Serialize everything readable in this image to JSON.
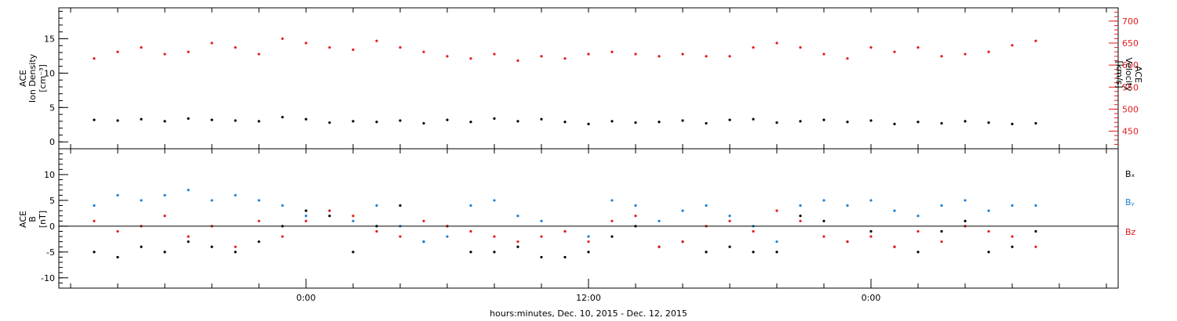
{
  "chart_data": [
    {
      "type": "scatter",
      "panel": "top",
      "ylabel_left": [
        "ACE",
        "Ion Density",
        "[cm⁻³]"
      ],
      "ylabel_right": [
        "ACE",
        "Velocity",
        "[km/s]"
      ],
      "ylim_left": [
        -1,
        19.5
      ],
      "yticks_left": [
        0,
        5,
        10,
        15
      ],
      "ylim_right": [
        410,
        730
      ],
      "yticks_right": [
        450,
        500,
        550,
        600,
        650,
        700
      ],
      "series": [
        {
          "axis": "left",
          "color": "#000000",
          "x": [
            -9,
            -8,
            -7,
            -6,
            -5,
            -4,
            -3,
            -2,
            -1,
            0,
            1,
            2,
            3,
            4,
            5,
            6,
            7,
            8,
            9,
            10,
            11,
            12,
            13,
            14,
            15,
            16,
            17,
            18,
            19,
            20,
            21,
            22,
            23,
            24,
            25,
            26,
            27,
            28,
            29,
            30,
            31
          ],
          "y": [
            3.2,
            3.1,
            3.3,
            3.0,
            3.4,
            3.2,
            3.1,
            3.0,
            3.6,
            3.3,
            2.8,
            3.0,
            2.9,
            3.1,
            2.7,
            3.2,
            2.9,
            3.4,
            3.0,
            3.3,
            2.9,
            2.6,
            3.0,
            2.8,
            2.9,
            3.1,
            2.7,
            3.2,
            3.3,
            2.8,
            3.0,
            3.2,
            2.9,
            3.1,
            2.6,
            2.9,
            2.7,
            3.0,
            2.8,
            2.6,
            2.7
          ]
        },
        {
          "axis": "right",
          "color": "#e41a1c",
          "x": [
            -9,
            -8,
            -7,
            -6,
            -5,
            -4,
            -3,
            -2,
            -1,
            0,
            1,
            2,
            3,
            4,
            5,
            6,
            7,
            8,
            9,
            10,
            11,
            12,
            13,
            14,
            15,
            16,
            17,
            18,
            19,
            20,
            21,
            22,
            23,
            24,
            25,
            26,
            27,
            28,
            29,
            30,
            31
          ],
          "y": [
            615,
            630,
            640,
            625,
            630,
            650,
            640,
            625,
            660,
            650,
            640,
            635,
            655,
            640,
            630,
            620,
            615,
            625,
            610,
            620,
            615,
            625,
            630,
            625,
            620,
            625,
            620,
            620,
            640,
            650,
            640,
            625,
            615,
            640,
            630,
            640,
            620,
            625,
            630,
            645,
            655
          ]
        }
      ]
    },
    {
      "type": "scatter",
      "panel": "bottom",
      "ylabel_left": [
        "ACE",
        "B",
        "[nT]"
      ],
      "ylim": [
        -12,
        15
      ],
      "yticks": [
        -10,
        -5,
        0,
        5,
        10
      ],
      "xlabel": "hours:minutes, Dec. 10, 2015 - Dec. 12, 2015",
      "x_ticks": [
        {
          "hour": 0,
          "label": "0:00"
        },
        {
          "hour": 12,
          "label": "12:00"
        },
        {
          "hour": 24,
          "label": "0:00"
        }
      ],
      "x_range_hours": [
        -10.5,
        34.5
      ],
      "series": [
        {
          "name": "Bx",
          "legend": "Bₓ",
          "color": "#000000",
          "x": [
            -9,
            -8,
            -7,
            -6,
            -5,
            -4,
            -3,
            -2,
            -1,
            0,
            1,
            2,
            3,
            4,
            5,
            6,
            7,
            8,
            9,
            10,
            11,
            12,
            13,
            14,
            15,
            16,
            17,
            18,
            19,
            20,
            21,
            22,
            23,
            24,
            25,
            26,
            27,
            28,
            29,
            30,
            31
          ],
          "y": [
            -5,
            -6,
            -4,
            -5,
            -3,
            -4,
            -5,
            -3,
            0,
            3,
            2,
            -5,
            0,
            4,
            -3,
            0,
            -5,
            -5,
            -4,
            -6,
            -6,
            -5,
            -2,
            0,
            -4,
            -3,
            -5,
            -4,
            -5,
            -5,
            2,
            1,
            -3,
            -1,
            -4,
            -5,
            -1,
            1,
            -5,
            -4,
            -1
          ]
        },
        {
          "name": "By",
          "legend": "Bᵧ",
          "color": "#1b7fd4",
          "x": [
            -9,
            -8,
            -7,
            -6,
            -5,
            -4,
            -3,
            -2,
            -1,
            0,
            1,
            2,
            3,
            4,
            5,
            6,
            7,
            8,
            9,
            10,
            11,
            12,
            13,
            14,
            15,
            16,
            17,
            18,
            19,
            20,
            21,
            22,
            23,
            24,
            25,
            26,
            27,
            28,
            29,
            30,
            31
          ],
          "y": [
            4,
            6,
            5,
            6,
            7,
            5,
            6,
            5,
            4,
            2,
            3,
            1,
            4,
            0,
            -3,
            -2,
            4,
            5,
            2,
            1,
            -1,
            -2,
            5,
            4,
            1,
            3,
            4,
            2,
            0,
            -3,
            4,
            5,
            4,
            5,
            3,
            2,
            4,
            5,
            3,
            4,
            4
          ]
        },
        {
          "name": "Bz",
          "legend": "Bz",
          "color": "#e41a1c",
          "x": [
            -9,
            -8,
            -7,
            -6,
            -5,
            -4,
            -3,
            -2,
            -1,
            0,
            1,
            2,
            3,
            4,
            5,
            6,
            7,
            8,
            9,
            10,
            11,
            12,
            13,
            14,
            15,
            16,
            17,
            18,
            19,
            20,
            21,
            22,
            23,
            24,
            25,
            26,
            27,
            28,
            29,
            30,
            31
          ],
          "y": [
            1,
            -1,
            0,
            2,
            -2,
            0,
            -4,
            1,
            -2,
            1,
            3,
            2,
            -1,
            -2,
            1,
            0,
            -1,
            -2,
            -3,
            -2,
            -1,
            -3,
            1,
            2,
            -4,
            -3,
            0,
            1,
            -1,
            3,
            1,
            -2,
            -3,
            -2,
            -4,
            -1,
            -3,
            0,
            -1,
            -2,
            -4
          ]
        }
      ]
    }
  ]
}
